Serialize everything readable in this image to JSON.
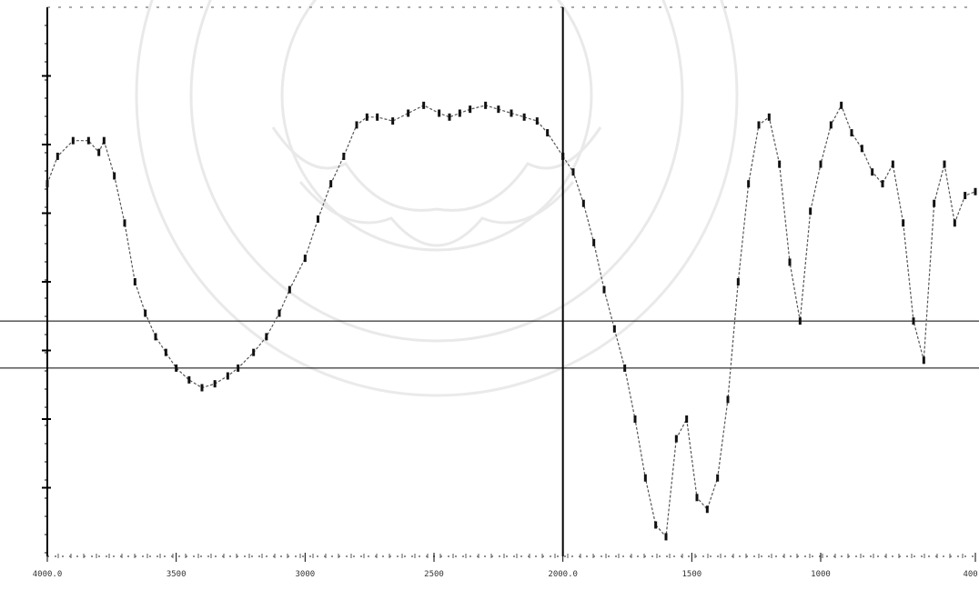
{
  "chart_data": {
    "type": "line",
    "title": "",
    "xlabel": "",
    "ylabel": "",
    "x_ticks": [
      "4000.0",
      "3500",
      "3000",
      "2500",
      "2000.0",
      "1500",
      "1000",
      "400.0"
    ],
    "y_ticks": [
      "",
      "",
      "",
      "",
      "",
      "",
      ""
    ],
    "xlim": [
      4000,
      400
    ],
    "ylim": [
      -40,
      100
    ],
    "grid": false,
    "reference_lines_y": [
      20,
      8
    ],
    "divider_x": 2000,
    "series": [
      {
        "x": [
          4000,
          3960,
          3900,
          3840,
          3800,
          3780,
          3740,
          3700,
          3660,
          3620,
          3580,
          3540,
          3500,
          3450,
          3400,
          3350,
          3300,
          3260,
          3200,
          3150,
          3100,
          3060,
          3000,
          2950,
          2900,
          2850,
          2800,
          2760,
          2720,
          2660,
          2600,
          2540,
          2480,
          2440,
          2400,
          2360,
          2300,
          2250,
          2200,
          2150,
          2100,
          2060,
          2000
        ],
        "y": [
          55,
          62,
          66,
          66,
          63,
          66,
          57,
          45,
          30,
          22,
          16,
          12,
          8,
          5,
          3,
          4,
          6,
          8,
          12,
          16,
          22,
          28,
          36,
          46,
          55,
          62,
          70,
          72,
          72,
          71,
          73,
          75,
          73,
          72,
          73,
          74,
          75,
          74,
          73,
          72,
          71,
          68,
          62
        ]
      },
      {
        "x": [
          2000,
          1960,
          1920,
          1880,
          1840,
          1800,
          1760,
          1720,
          1680,
          1640,
          1600,
          1560,
          1520,
          1480,
          1440,
          1400,
          1360,
          1320,
          1280,
          1240,
          1200,
          1160,
          1120,
          1080,
          1040,
          1000,
          960,
          920,
          880,
          840,
          800,
          760,
          720,
          680,
          640,
          600,
          560,
          520,
          480,
          440,
          400
        ],
        "y": [
          62,
          58,
          50,
          40,
          28,
          18,
          8,
          -5,
          -20,
          -32,
          -35,
          -10,
          -5,
          -25,
          -28,
          -20,
          0,
          30,
          55,
          70,
          72,
          60,
          35,
          20,
          48,
          60,
          70,
          75,
          68,
          64,
          58,
          55,
          60,
          45,
          20,
          10,
          50,
          60,
          45,
          52,
          53
        ]
      }
    ]
  }
}
